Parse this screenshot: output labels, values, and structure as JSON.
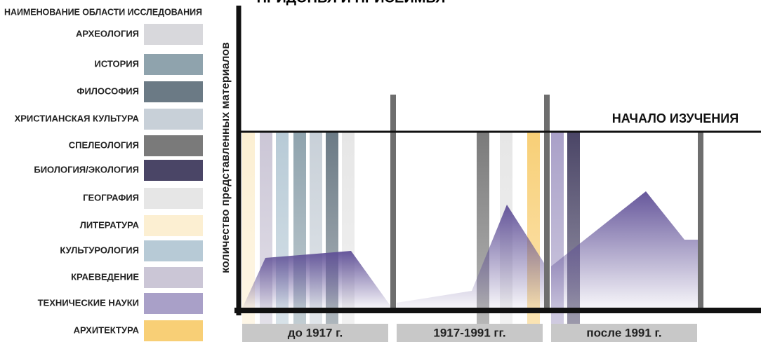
{
  "title": "ПРИДОНЬЯ И ПРИСЕЙМЬЯ",
  "legend": {
    "heading": "НАИМЕНОВАНИЕ ОБЛАСТИ ИССЛЕДОВАНИЯ",
    "items": [
      {
        "label": "АРХЕОЛОГИЯ",
        "color": "#d8d8dc"
      },
      {
        "label": "ИСТОРИЯ",
        "color": "#8fa3ad"
      },
      {
        "label": "ФИЛОСОФИЯ",
        "color": "#6b7a85"
      },
      {
        "label": "ХРИСТИАНСКАЯ КУЛЬТУРА",
        "color": "#c8d0d8"
      },
      {
        "label": "СПЕЛЕОЛОГИЯ",
        "color": "#7a7a7a"
      },
      {
        "label": "БИОЛОГИЯ/ЭКОЛОГИЯ",
        "color": "#4a4566"
      },
      {
        "label": "ГЕОГРАФИЯ",
        "color": "#e6e6e6"
      },
      {
        "label": "ЛИТЕРАТУРА",
        "color": "#fcefd2"
      },
      {
        "label": "КУЛЬТУРОЛОГИЯ",
        "color": "#b7cad6"
      },
      {
        "label": "КРАЕВЕДЕНИЕ",
        "color": "#cbc6d6"
      },
      {
        "label": "ТЕХНИЧЕСКИЕ НАУКИ",
        "color": "#a9a0c8"
      },
      {
        "label": "АРХИТЕКТУРА",
        "color": "#f8cf76"
      }
    ]
  },
  "y_axis_label": "количество представленных материалов",
  "start_line_label": "НАЧАЛО ИЗУЧЕНИЯ",
  "periods": [
    "до 1917 г.",
    "1917-1991 гг.",
    "после 1991 г."
  ]
}
